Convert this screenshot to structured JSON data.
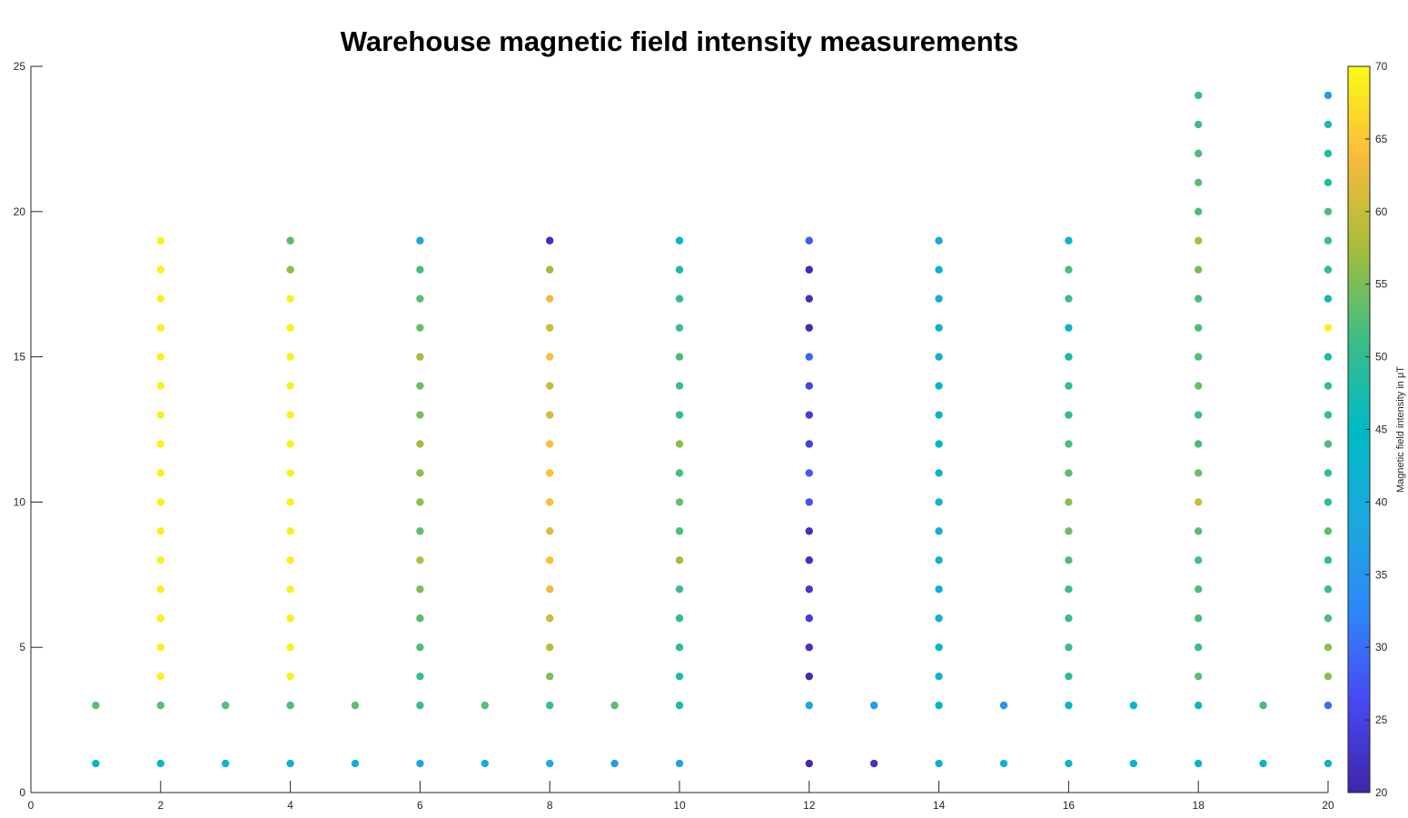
{
  "chart_data": {
    "type": "scatter",
    "title": "Warehouse magnetic field intensity measurements",
    "xlabel": "",
    "ylabel": "",
    "xlim": [
      0,
      20
    ],
    "ylim": [
      0,
      25
    ],
    "xticks": [
      0,
      2,
      4,
      6,
      8,
      10,
      12,
      14,
      16,
      18,
      20
    ],
    "yticks": [
      0,
      5,
      10,
      15,
      20,
      25
    ],
    "grid": false,
    "colormap": "parula",
    "colorbar": {
      "label": "Magnetic field intensity in μT",
      "limits": [
        20,
        70
      ],
      "ticks": [
        20,
        25,
        30,
        35,
        40,
        45,
        50,
        55,
        60,
        65,
        70
      ]
    },
    "points": [
      [
        1,
        1,
        43
      ],
      [
        1,
        3,
        53
      ],
      [
        2,
        1,
        43
      ],
      [
        2,
        3,
        53
      ],
      [
        2,
        4,
        69
      ],
      [
        2,
        5,
        69
      ],
      [
        2,
        6,
        69
      ],
      [
        2,
        7,
        69
      ],
      [
        2,
        8,
        69
      ],
      [
        2,
        9,
        69
      ],
      [
        2,
        10,
        69
      ],
      [
        2,
        11,
        69
      ],
      [
        2,
        12,
        69
      ],
      [
        2,
        13,
        69
      ],
      [
        2,
        14,
        69
      ],
      [
        2,
        15,
        69
      ],
      [
        2,
        16,
        69
      ],
      [
        2,
        17,
        69
      ],
      [
        2,
        18,
        69
      ],
      [
        2,
        19,
        69
      ],
      [
        3,
        1,
        42
      ],
      [
        3,
        3,
        53
      ],
      [
        4,
        1,
        42
      ],
      [
        4,
        3,
        52
      ],
      [
        4,
        4,
        69
      ],
      [
        4,
        5,
        69
      ],
      [
        4,
        6,
        69
      ],
      [
        4,
        7,
        69
      ],
      [
        4,
        8,
        69
      ],
      [
        4,
        9,
        69
      ],
      [
        4,
        10,
        69
      ],
      [
        4,
        11,
        69
      ],
      [
        4,
        12,
        69
      ],
      [
        4,
        13,
        69
      ],
      [
        4,
        14,
        69
      ],
      [
        4,
        15,
        69
      ],
      [
        4,
        16,
        69
      ],
      [
        4,
        17,
        69
      ],
      [
        4,
        18,
        56
      ],
      [
        4,
        19,
        53
      ],
      [
        5,
        1,
        40
      ],
      [
        5,
        3,
        53
      ],
      [
        6,
        1,
        38
      ],
      [
        6,
        3,
        51
      ],
      [
        6,
        4,
        51
      ],
      [
        6,
        5,
        52
      ],
      [
        6,
        6,
        53
      ],
      [
        6,
        7,
        55
      ],
      [
        6,
        8,
        59
      ],
      [
        6,
        9,
        53
      ],
      [
        6,
        10,
        56
      ],
      [
        6,
        11,
        56
      ],
      [
        6,
        12,
        57
      ],
      [
        6,
        13,
        55
      ],
      [
        6,
        14,
        54
      ],
      [
        6,
        15,
        57
      ],
      [
        6,
        16,
        54
      ],
      [
        6,
        17,
        53
      ],
      [
        6,
        18,
        52
      ],
      [
        6,
        19,
        38
      ],
      [
        7,
        1,
        40
      ],
      [
        7,
        3,
        53
      ],
      [
        8,
        1,
        39
      ],
      [
        8,
        3,
        51
      ],
      [
        8,
        4,
        55
      ],
      [
        8,
        5,
        59
      ],
      [
        8,
        6,
        60
      ],
      [
        8,
        7,
        63
      ],
      [
        8,
        8,
        64
      ],
      [
        8,
        9,
        62
      ],
      [
        8,
        10,
        64
      ],
      [
        8,
        11,
        64
      ],
      [
        8,
        12,
        64
      ],
      [
        8,
        13,
        61
      ],
      [
        8,
        14,
        60
      ],
      [
        8,
        15,
        64
      ],
      [
        8,
        16,
        60
      ],
      [
        8,
        17,
        63
      ],
      [
        8,
        18,
        57
      ],
      [
        8,
        19,
        22
      ],
      [
        9,
        1,
        37
      ],
      [
        9,
        3,
        53
      ],
      [
        10,
        1,
        37
      ],
      [
        10,
        3,
        48
      ],
      [
        10,
        4,
        48
      ],
      [
        10,
        5,
        50
      ],
      [
        10,
        6,
        50
      ],
      [
        10,
        7,
        51
      ],
      [
        10,
        8,
        57
      ],
      [
        10,
        9,
        52
      ],
      [
        10,
        10,
        54
      ],
      [
        10,
        11,
        52
      ],
      [
        10,
        12,
        56
      ],
      [
        10,
        13,
        50
      ],
      [
        10,
        14,
        51
      ],
      [
        10,
        15,
        52
      ],
      [
        10,
        16,
        51
      ],
      [
        10,
        17,
        50
      ],
      [
        10,
        18,
        48
      ],
      [
        10,
        19,
        43
      ],
      [
        12,
        1,
        21
      ],
      [
        12,
        3,
        38
      ],
      [
        12,
        4,
        21
      ],
      [
        12,
        5,
        22
      ],
      [
        12,
        6,
        24
      ],
      [
        12,
        7,
        23
      ],
      [
        12,
        8,
        22
      ],
      [
        12,
        9,
        22
      ],
      [
        12,
        10,
        27
      ],
      [
        12,
        11,
        28
      ],
      [
        12,
        12,
        25
      ],
      [
        12,
        13,
        24
      ],
      [
        12,
        14,
        25
      ],
      [
        12,
        15,
        29
      ],
      [
        12,
        16,
        21
      ],
      [
        12,
        17,
        22
      ],
      [
        12,
        18,
        21
      ],
      [
        12,
        19,
        28
      ],
      [
        13,
        1,
        22
      ],
      [
        13,
        3,
        37
      ],
      [
        14,
        1,
        41
      ],
      [
        14,
        3,
        44
      ],
      [
        14,
        4,
        43
      ],
      [
        14,
        5,
        43
      ],
      [
        14,
        6,
        41
      ],
      [
        14,
        7,
        41
      ],
      [
        14,
        8,
        40
      ],
      [
        14,
        9,
        40
      ],
      [
        14,
        10,
        42
      ],
      [
        14,
        11,
        42
      ],
      [
        14,
        12,
        44
      ],
      [
        14,
        13,
        43
      ],
      [
        14,
        14,
        44
      ],
      [
        14,
        15,
        41
      ],
      [
        14,
        16,
        42
      ],
      [
        14,
        17,
        40
      ],
      [
        14,
        18,
        42
      ],
      [
        14,
        19,
        38
      ],
      [
        15,
        1,
        41
      ],
      [
        15,
        3,
        35
      ],
      [
        16,
        1,
        43
      ],
      [
        16,
        3,
        43
      ],
      [
        16,
        4,
        50
      ],
      [
        16,
        5,
        51
      ],
      [
        16,
        6,
        51
      ],
      [
        16,
        7,
        51
      ],
      [
        16,
        8,
        52
      ],
      [
        16,
        9,
        54
      ],
      [
        16,
        10,
        56
      ],
      [
        16,
        11,
        53
      ],
      [
        16,
        12,
        52
      ],
      [
        16,
        13,
        50
      ],
      [
        16,
        14,
        50
      ],
      [
        16,
        15,
        48
      ],
      [
        16,
        16,
        42
      ],
      [
        16,
        17,
        51
      ],
      [
        16,
        18,
        52
      ],
      [
        16,
        19,
        42
      ],
      [
        17,
        1,
        43
      ],
      [
        17,
        3,
        44
      ],
      [
        18,
        1,
        42
      ],
      [
        18,
        3,
        46
      ],
      [
        18,
        4,
        53
      ],
      [
        18,
        5,
        51
      ],
      [
        18,
        6,
        52
      ],
      [
        18,
        7,
        52
      ],
      [
        18,
        8,
        52
      ],
      [
        18,
        9,
        53
      ],
      [
        18,
        10,
        60
      ],
      [
        18,
        11,
        54
      ],
      [
        18,
        12,
        52
      ],
      [
        18,
        13,
        51
      ],
      [
        18,
        14,
        54
      ],
      [
        18,
        15,
        53
      ],
      [
        18,
        16,
        52
      ],
      [
        18,
        17,
        52
      ],
      [
        18,
        18,
        55
      ],
      [
        18,
        19,
        58
      ],
      [
        18,
        20,
        52
      ],
      [
        18,
        21,
        53
      ],
      [
        18,
        22,
        52
      ],
      [
        18,
        23,
        51
      ],
      [
        18,
        24,
        51
      ],
      [
        19,
        1,
        42
      ],
      [
        19,
        3,
        52
      ],
      [
        20,
        1,
        39
      ],
      [
        20,
        3,
        30
      ],
      [
        20,
        4,
        56
      ],
      [
        20,
        5,
        56
      ],
      [
        20,
        6,
        52
      ],
      [
        20,
        7,
        51
      ],
      [
        20,
        8,
        50
      ],
      [
        20,
        9,
        53
      ],
      [
        20,
        10,
        50
      ],
      [
        20,
        11,
        50
      ],
      [
        20,
        12,
        52
      ],
      [
        20,
        13,
        50
      ],
      [
        20,
        14,
        50
      ],
      [
        20,
        15,
        48
      ],
      [
        20,
        16,
        69
      ],
      [
        20,
        17,
        46
      ],
      [
        20,
        18,
        50
      ],
      [
        20,
        19,
        51
      ],
      [
        20,
        20,
        52
      ],
      [
        20,
        21,
        48
      ],
      [
        20,
        22,
        48
      ],
      [
        20,
        23,
        48
      ],
      [
        20,
        24,
        37
      ]
    ]
  }
}
